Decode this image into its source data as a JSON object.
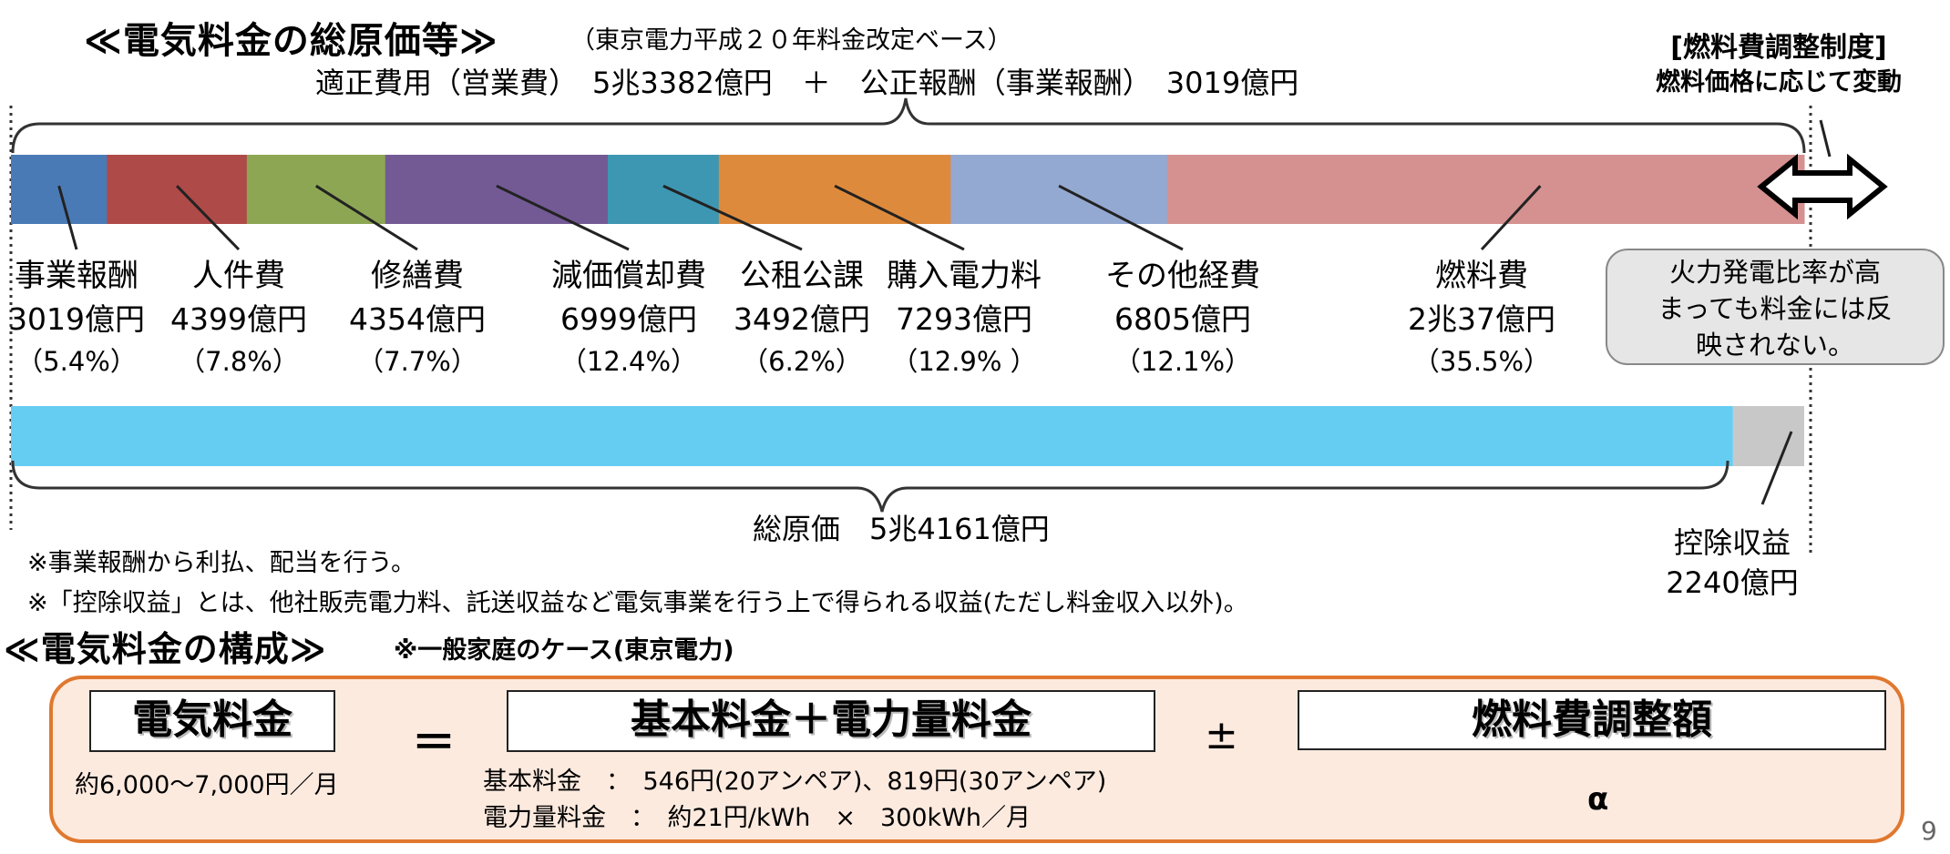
{
  "header": {
    "title": "≪電気料金の総原価等≫",
    "subtitle": "（東京電力平成２０年料金改定ベース）",
    "cost_line": "適正費用（営業費）　5兆3382億円　＋　公正報酬（事業報酬）　3019億円"
  },
  "adjustment": {
    "title1": "[燃料費調整制度]",
    "title2": "燃料価格に応じて変動",
    "bubble1": "火力発電比率が高",
    "bubble2": "まっても料金には反",
    "bubble3": "映されない。"
  },
  "chart_data": {
    "type": "bar",
    "stacked": true,
    "orientation": "horizontal",
    "unit": "億円",
    "series": [
      {
        "name": "事業報酬",
        "value": 3019,
        "value_label": "3019億円",
        "percent_label": "（5.4%）",
        "color": "#4a7ab5"
      },
      {
        "name": "人件費",
        "value": 4399,
        "value_label": "4399億円",
        "percent_label": "（7.8%）",
        "color": "#ae4a48"
      },
      {
        "name": "修繕費",
        "value": 4354,
        "value_label": "4354億円",
        "percent_label": "（7.7%）",
        "color": "#8da654"
      },
      {
        "name": "減価償却費",
        "value": 6999,
        "value_label": "6999億円",
        "percent_label": "（12.4%）",
        "color": "#735a94"
      },
      {
        "name": "公租公課",
        "value": 3492,
        "value_label": "3492億円",
        "percent_label": "（6.2%）",
        "color": "#3e97b2"
      },
      {
        "name": "購入電力料",
        "value": 7293,
        "value_label": "7293億円",
        "percent_label": "（12.9% ）",
        "color": "#de8a3c"
      },
      {
        "name": "その他経費",
        "value": 6805,
        "value_label": "6805億円",
        "percent_label": "（12.1%）",
        "color": "#94a9d1"
      },
      {
        "name": "燃料費",
        "value": 20037,
        "value_label": "2兆37億円",
        "percent_label": "（35.5%）",
        "color": "#d49190"
      }
    ],
    "total_cost": {
      "label": "総原価　5兆4161億円",
      "value": 54161,
      "color": "#66cdf2"
    },
    "deduction": {
      "name": "控除収益",
      "value": 2240,
      "value_label": "2240億円",
      "color": "#c8c8c8"
    }
  },
  "notes": {
    "n1": "※事業報酬から利払、配当を行う。",
    "n2": "※「控除収益」とは、他社販売電力料、託送収益など電気事業を行う上で得られる収益(ただし料金収入以外)。"
  },
  "composition": {
    "title": "≪電気料金の構成≫",
    "subtitle": "※一般家庭のケース(東京電力)",
    "bill_label": "電気料金",
    "bill_amount": "約6,000～7,000円／月",
    "equals": "＝",
    "base_label": "基本料金＋電力量料金",
    "base_detail": "基本料金　：　546円(20アンペア)、819円(30アンペア)",
    "energy_detail": "電力量料金　：　約21円/kWh　×　300kWh／月",
    "plusminus": "±",
    "fuel_label": "燃料費調整額",
    "alpha": "α"
  },
  "page_number": "9"
}
